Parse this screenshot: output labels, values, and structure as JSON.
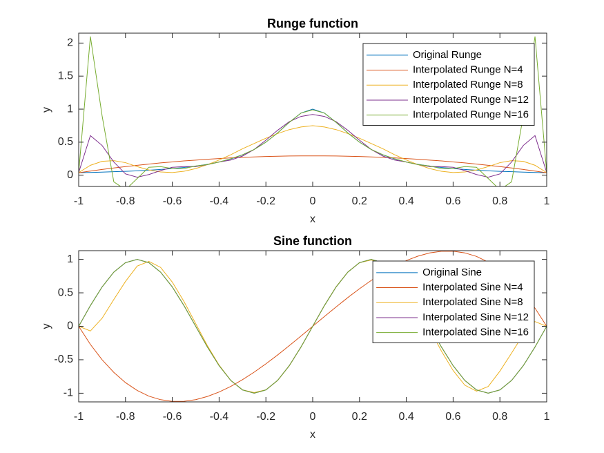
{
  "chart_data": [
    {
      "type": "line",
      "title": "Runge function",
      "xlabel": "x",
      "ylabel": "y",
      "x": [
        -1,
        -0.95,
        -0.9,
        -0.85,
        -0.8,
        -0.75,
        -0.7,
        -0.65,
        -0.6,
        -0.55,
        -0.5,
        -0.45,
        -0.4,
        -0.35,
        -0.3,
        -0.25,
        -0.2,
        -0.15,
        -0.1,
        -0.05,
        0,
        0.05,
        0.1,
        0.15,
        0.2,
        0.25,
        0.3,
        0.35,
        0.4,
        0.45,
        0.5,
        0.55,
        0.6,
        0.65,
        0.7,
        0.75,
        0.8,
        0.85,
        0.9,
        0.95,
        1
      ],
      "series": [
        {
          "name": "Original Runge",
          "color": "#0072bd",
          "values": [
            0.038,
            0.042,
            0.047,
            0.053,
            0.059,
            0.066,
            0.075,
            0.087,
            0.1,
            0.117,
            0.138,
            0.165,
            0.2,
            0.246,
            0.308,
            0.39,
            0.5,
            0.64,
            0.8,
            0.941,
            1,
            0.941,
            0.8,
            0.64,
            0.5,
            0.39,
            0.308,
            0.246,
            0.2,
            0.165,
            0.138,
            0.117,
            0.1,
            0.087,
            0.075,
            0.066,
            0.059,
            0.053,
            0.047,
            0.042,
            0.038
          ]
        },
        {
          "name": "Interpolated Runge N=4",
          "color": "#d95319",
          "values": [
            0.038,
            0.063,
            0.087,
            0.109,
            0.13,
            0.15,
            0.168,
            0.186,
            0.201,
            0.216,
            0.229,
            0.242,
            0.252,
            0.262,
            0.27,
            0.277,
            0.283,
            0.287,
            0.291,
            0.292,
            0.293,
            0.292,
            0.291,
            0.287,
            0.283,
            0.277,
            0.27,
            0.262,
            0.252,
            0.242,
            0.229,
            0.216,
            0.201,
            0.186,
            0.168,
            0.15,
            0.13,
            0.109,
            0.087,
            0.063,
            0.038
          ]
        },
        {
          "name": "Interpolated Runge N=8",
          "color": "#edb120",
          "values": [
            0.04,
            0.15,
            0.21,
            0.22,
            0.19,
            0.13,
            0.08,
            0.05,
            0.04,
            0.06,
            0.1,
            0.16,
            0.23,
            0.31,
            0.4,
            0.48,
            0.56,
            0.63,
            0.69,
            0.73,
            0.75,
            0.73,
            0.69,
            0.63,
            0.56,
            0.48,
            0.4,
            0.31,
            0.23,
            0.16,
            0.1,
            0.06,
            0.04,
            0.05,
            0.08,
            0.13,
            0.19,
            0.22,
            0.21,
            0.15,
            0.04
          ]
        },
        {
          "name": "Interpolated Runge N=12",
          "color": "#7e2f8e",
          "values": [
            0.04,
            0.6,
            0.45,
            0.2,
            0.02,
            -0.03,
            0.01,
            0.07,
            0.12,
            0.13,
            0.13,
            0.16,
            0.2,
            0.23,
            0.29,
            0.39,
            0.53,
            0.68,
            0.81,
            0.89,
            0.92,
            0.89,
            0.81,
            0.68,
            0.53,
            0.39,
            0.29,
            0.23,
            0.2,
            0.16,
            0.13,
            0.13,
            0.12,
            0.07,
            0.01,
            -0.03,
            0.02,
            0.2,
            0.45,
            0.6,
            0.04
          ]
        },
        {
          "name": "Interpolated Runge N=16",
          "color": "#77ac30",
          "values": [
            0.04,
            2.1,
            0.9,
            -0.1,
            -0.22,
            -0.05,
            0.12,
            0.13,
            0.1,
            0.1,
            0.14,
            0.16,
            0.2,
            0.25,
            0.31,
            0.39,
            0.5,
            0.64,
            0.8,
            0.94,
            0.99,
            0.94,
            0.8,
            0.64,
            0.5,
            0.39,
            0.31,
            0.25,
            0.2,
            0.16,
            0.14,
            0.1,
            0.1,
            0.13,
            0.12,
            -0.05,
            -0.22,
            -0.1,
            0.9,
            2.1,
            0.04
          ]
        }
      ],
      "xlim": [
        -1,
        1
      ],
      "ylim": [
        -0.17,
        2.15
      ],
      "xticks": [
        -1,
        -0.8,
        -0.6,
        -0.4,
        -0.2,
        0,
        0.2,
        0.4,
        0.6,
        0.8,
        1
      ],
      "yticks": [
        0,
        0.5,
        1,
        1.5,
        2
      ],
      "legend": "northeast"
    },
    {
      "type": "line",
      "title": "Sine function",
      "xlabel": "x",
      "ylabel": "y",
      "x": [
        -1,
        -0.95,
        -0.9,
        -0.85,
        -0.8,
        -0.75,
        -0.7,
        -0.65,
        -0.6,
        -0.55,
        -0.5,
        -0.45,
        -0.4,
        -0.35,
        -0.3,
        -0.25,
        -0.2,
        -0.15,
        -0.1,
        -0.05,
        0,
        0.05,
        0.1,
        0.15,
        0.2,
        0.25,
        0.3,
        0.35,
        0.4,
        0.45,
        0.5,
        0.55,
        0.6,
        0.65,
        0.7,
        0.75,
        0.8,
        0.85,
        0.9,
        0.95,
        1
      ],
      "series": [
        {
          "name": "Original Sine",
          "color": "#0072bd",
          "values": [
            0,
            0.309,
            0.588,
            0.809,
            0.951,
            1,
            0.951,
            0.809,
            0.588,
            0.309,
            0,
            -0.309,
            -0.588,
            -0.809,
            -0.951,
            -1,
            -0.951,
            -0.809,
            -0.588,
            -0.309,
            0,
            0.309,
            0.588,
            0.809,
            0.951,
            1,
            0.951,
            0.809,
            0.588,
            0.309,
            0,
            -0.309,
            -0.588,
            -0.809,
            -0.951,
            -1,
            -0.951,
            -0.809,
            -0.588,
            -0.309,
            0
          ]
        },
        {
          "name": "Interpolated Sine N=4",
          "color": "#d95319",
          "values": [
            0,
            -0.271,
            -0.5,
            -0.689,
            -0.842,
            -0.959,
            -1.044,
            -1.097,
            -1.122,
            -1.121,
            -1.096,
            -1.049,
            -0.982,
            -0.898,
            -0.798,
            -0.685,
            -0.561,
            -0.429,
            -0.289,
            -0.146,
            0,
            0.146,
            0.289,
            0.429,
            0.561,
            0.685,
            0.798,
            0.898,
            0.982,
            1.049,
            1.096,
            1.121,
            1.122,
            1.097,
            1.044,
            0.959,
            0.842,
            0.689,
            0.5,
            0.271,
            0
          ]
        },
        {
          "name": "Interpolated Sine N=8",
          "color": "#edb120",
          "values": [
            0,
            -0.07,
            0.12,
            0.4,
            0.67,
            0.9,
            0.97,
            0.88,
            0.66,
            0.37,
            0.04,
            -0.29,
            -0.58,
            -0.81,
            -0.95,
            -0.99,
            -0.95,
            -0.81,
            -0.59,
            -0.31,
            0,
            0.31,
            0.59,
            0.81,
            0.95,
            0.99,
            0.95,
            0.81,
            0.58,
            0.29,
            -0.04,
            -0.37,
            -0.66,
            -0.88,
            -0.97,
            -0.9,
            -0.67,
            -0.4,
            -0.12,
            0.07,
            0
          ]
        },
        {
          "name": "Interpolated Sine N=12",
          "color": "#7e2f8e",
          "values": [
            0,
            0.31,
            0.588,
            0.809,
            0.951,
            1,
            0.951,
            0.809,
            0.588,
            0.309,
            0,
            -0.309,
            -0.588,
            -0.809,
            -0.951,
            -1,
            -0.951,
            -0.809,
            -0.588,
            -0.309,
            0,
            0.309,
            0.588,
            0.809,
            0.951,
            1,
            0.951,
            0.809,
            0.588,
            0.309,
            0,
            -0.309,
            -0.588,
            -0.809,
            -0.951,
            -1,
            -0.951,
            -0.809,
            -0.588,
            -0.31,
            0
          ]
        },
        {
          "name": "Interpolated Sine N=16",
          "color": "#77ac30",
          "values": [
            0,
            0.309,
            0.588,
            0.809,
            0.951,
            1,
            0.951,
            0.809,
            0.588,
            0.309,
            0,
            -0.309,
            -0.588,
            -0.809,
            -0.951,
            -1,
            -0.951,
            -0.809,
            -0.588,
            -0.309,
            0,
            0.309,
            0.588,
            0.809,
            0.951,
            1,
            0.951,
            0.809,
            0.588,
            0.309,
            0,
            -0.309,
            -0.588,
            -0.809,
            -0.951,
            -1,
            -0.951,
            -0.809,
            -0.588,
            -0.309,
            0
          ]
        }
      ],
      "xlim": [
        -1,
        1
      ],
      "ylim": [
        -1.13,
        1.13
      ],
      "xticks": [
        -1,
        -0.8,
        -0.6,
        -0.4,
        -0.2,
        0,
        0.2,
        0.4,
        0.6,
        0.8,
        1
      ],
      "yticks": [
        -1,
        -0.5,
        0,
        0.5,
        1
      ],
      "legend": "northeast"
    }
  ]
}
